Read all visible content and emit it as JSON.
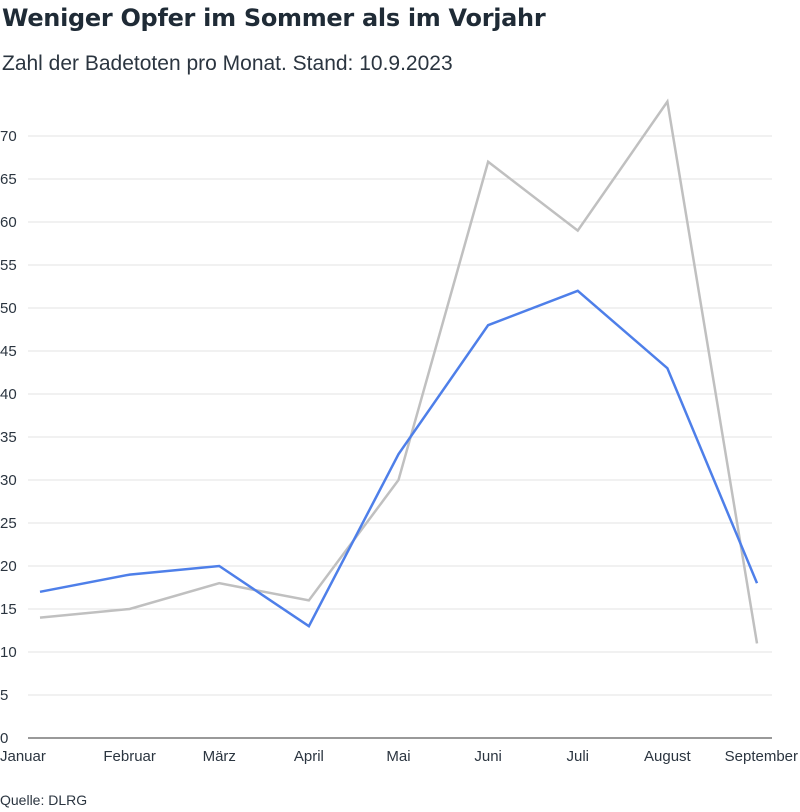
{
  "title": "Weniger Opfer im Sommer als im Vorjahr",
  "subtitle": "Zahl der Badetoten pro Monat. Stand: 10.9.2023",
  "source": "Quelle: DLRG",
  "chart_data": {
    "type": "line",
    "categories": [
      "Januar",
      "Februar",
      "März",
      "April",
      "Mai",
      "Juni",
      "Juli",
      "August",
      "September"
    ],
    "series": [
      {
        "color": "#c0c0c0",
        "values": [
          14,
          15,
          18,
          16,
          30,
          67,
          59,
          74,
          11
        ]
      },
      {
        "color": "#4e7fe9",
        "values": [
          17,
          19,
          20,
          13,
          33,
          48,
          52,
          43,
          18
        ]
      }
    ],
    "yticks": [
      0,
      5,
      10,
      15,
      20,
      25,
      30,
      35,
      40,
      45,
      50,
      55,
      60,
      65,
      70
    ],
    "ylim": [
      0,
      74
    ],
    "grid": true
  }
}
